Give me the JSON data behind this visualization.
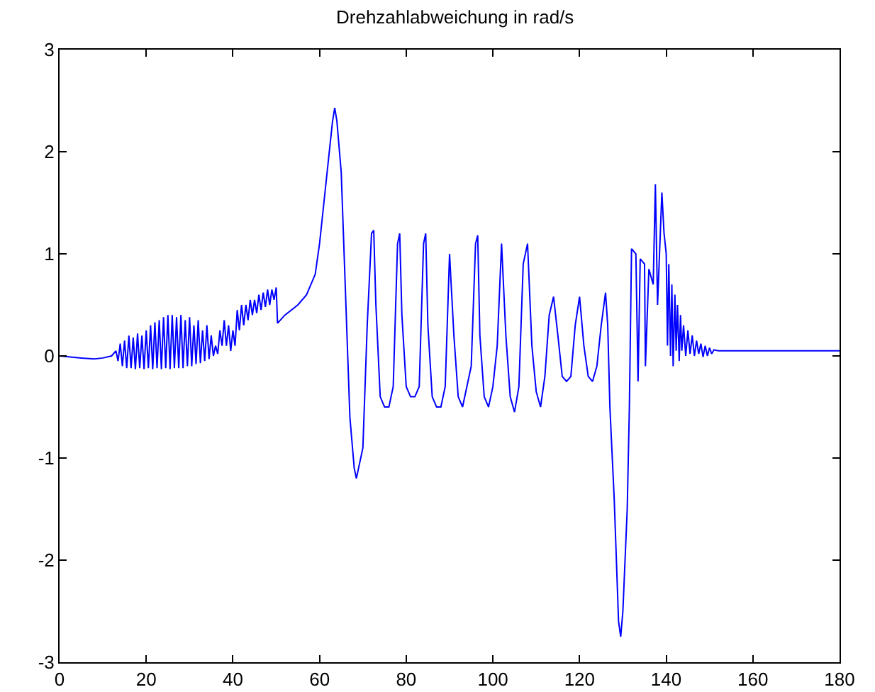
{
  "chart_data": {
    "type": "line",
    "title": "Drehzahlabweichung in rad/s",
    "xlim": [
      0,
      180
    ],
    "ylim": [
      -3,
      3
    ],
    "xticks": [
      0,
      20,
      40,
      60,
      80,
      100,
      120,
      140,
      160,
      180
    ],
    "yticks": [
      -3,
      -2,
      -1,
      0,
      1,
      2,
      3
    ],
    "series": [
      {
        "color": "#0000ff",
        "x": [
          0,
          5,
          8,
          10,
          12,
          13,
          13.5,
          14,
          14.5,
          15,
          15.5,
          16,
          16.5,
          17,
          17.5,
          18,
          18.5,
          19,
          19.5,
          20,
          20.5,
          21,
          21.5,
          22,
          22.5,
          23,
          23.5,
          24,
          24.5,
          25,
          25.5,
          26,
          26.5,
          27,
          27.5,
          28,
          28.5,
          29,
          29.5,
          30,
          30.5,
          31,
          31.5,
          32,
          32.5,
          33,
          33.5,
          34,
          34.5,
          35,
          35.5,
          36,
          36.5,
          37,
          37.5,
          38,
          38.5,
          39,
          39.5,
          40,
          40.5,
          41,
          41.5,
          42,
          42.5,
          43,
          43.5,
          44,
          44.5,
          45,
          45.5,
          46,
          46.5,
          47,
          47.5,
          48,
          48.5,
          49,
          49.5,
          50,
          50.3,
          52,
          55,
          57,
          59,
          60,
          61,
          62,
          63,
          63.5,
          64,
          65,
          66,
          67,
          68,
          68.5,
          69,
          70,
          71,
          72,
          72.5,
          73,
          74,
          75,
          76,
          77,
          78,
          78.5,
          79,
          80,
          81,
          82,
          83,
          84,
          84.5,
          85,
          86,
          87,
          88,
          89,
          90,
          91,
          92,
          93,
          94,
          95,
          96,
          96.5,
          97,
          98,
          99,
          100,
          101,
          102,
          103,
          104,
          105,
          106,
          107,
          108,
          109,
          110,
          111,
          112,
          113,
          114,
          115,
          116,
          117,
          118,
          119,
          120,
          121,
          122,
          123,
          124,
          125,
          126,
          126.5,
          127,
          128,
          129,
          129.5,
          130,
          131,
          131.5,
          132,
          133,
          133.5,
          134,
          135,
          135.2,
          136,
          137,
          137.5,
          138,
          139,
          139.5,
          140,
          140.3,
          140.6,
          141,
          141.3,
          141.6,
          142,
          142.3,
          142.6,
          143,
          143.3,
          143.6,
          144,
          144.5,
          145,
          145.5,
          146,
          146.5,
          147,
          147.5,
          148,
          148.5,
          149,
          149.5,
          150,
          150.5,
          151,
          152,
          180
        ],
        "values": [
          0,
          -0.02,
          -0.03,
          -0.02,
          0,
          0.05,
          -0.05,
          0.12,
          -0.1,
          0.15,
          -0.12,
          0.2,
          -0.12,
          0.18,
          -0.13,
          0.22,
          -0.12,
          0.2,
          -0.13,
          0.25,
          -0.12,
          0.3,
          -0.13,
          0.33,
          -0.12,
          0.35,
          -0.13,
          0.38,
          -0.12,
          0.4,
          -0.13,
          0.4,
          -0.12,
          0.38,
          -0.12,
          0.4,
          -0.12,
          0.35,
          -0.1,
          0.38,
          -0.1,
          0.3,
          -0.08,
          0.35,
          -0.07,
          0.25,
          -0.05,
          0.3,
          -0.03,
          0.2,
          0,
          0.1,
          0.02,
          0.25,
          0.1,
          0.35,
          0.1,
          0.3,
          0.05,
          0.25,
          0.1,
          0.45,
          0.25,
          0.5,
          0.3,
          0.5,
          0.35,
          0.55,
          0.4,
          0.55,
          0.42,
          0.6,
          0.45,
          0.62,
          0.48,
          0.65,
          0.5,
          0.65,
          0.55,
          0.67,
          0.32,
          0.4,
          0.5,
          0.6,
          0.8,
          1.1,
          1.5,
          1.9,
          2.3,
          2.43,
          2.3,
          1.8,
          0.6,
          -0.6,
          -1.1,
          -1.2,
          -1.1,
          -0.9,
          0.3,
          1.2,
          1.23,
          0.5,
          -0.4,
          -0.5,
          -0.5,
          -0.3,
          1.1,
          1.2,
          0.4,
          -0.3,
          -0.4,
          -0.4,
          -0.3,
          1.1,
          1.2,
          0.3,
          -0.4,
          -0.5,
          -0.5,
          -0.3,
          1.0,
          0.2,
          -0.4,
          -0.5,
          -0.3,
          -0.1,
          1.1,
          1.18,
          0.2,
          -0.4,
          -0.5,
          -0.3,
          0.1,
          1.1,
          0.2,
          -0.4,
          -0.55,
          -0.3,
          0.9,
          1.1,
          0.1,
          -0.35,
          -0.5,
          -0.2,
          0.4,
          0.58,
          0.2,
          -0.2,
          -0.25,
          -0.2,
          0.3,
          0.58,
          0.1,
          -0.2,
          -0.25,
          -0.1,
          0.3,
          0.62,
          0.3,
          -0.5,
          -1.4,
          -2.6,
          -2.75,
          -2.5,
          -1.5,
          -0.5,
          1.05,
          1.0,
          -0.25,
          0.95,
          0.9,
          -0.1,
          0.85,
          0.7,
          1.68,
          0.5,
          1.6,
          1.2,
          1.0,
          0.1,
          0.9,
          0.0,
          0.7,
          -0.1,
          0.6,
          0.05,
          0.5,
          -0.05,
          0.4,
          0.05,
          0.3,
          0,
          0.25,
          0.02,
          0.2,
          0,
          0.15,
          0.02,
          0.12,
          -0.01,
          0.1,
          0,
          0.08,
          0.02,
          0.06,
          0.05,
          0.05
        ]
      }
    ]
  }
}
